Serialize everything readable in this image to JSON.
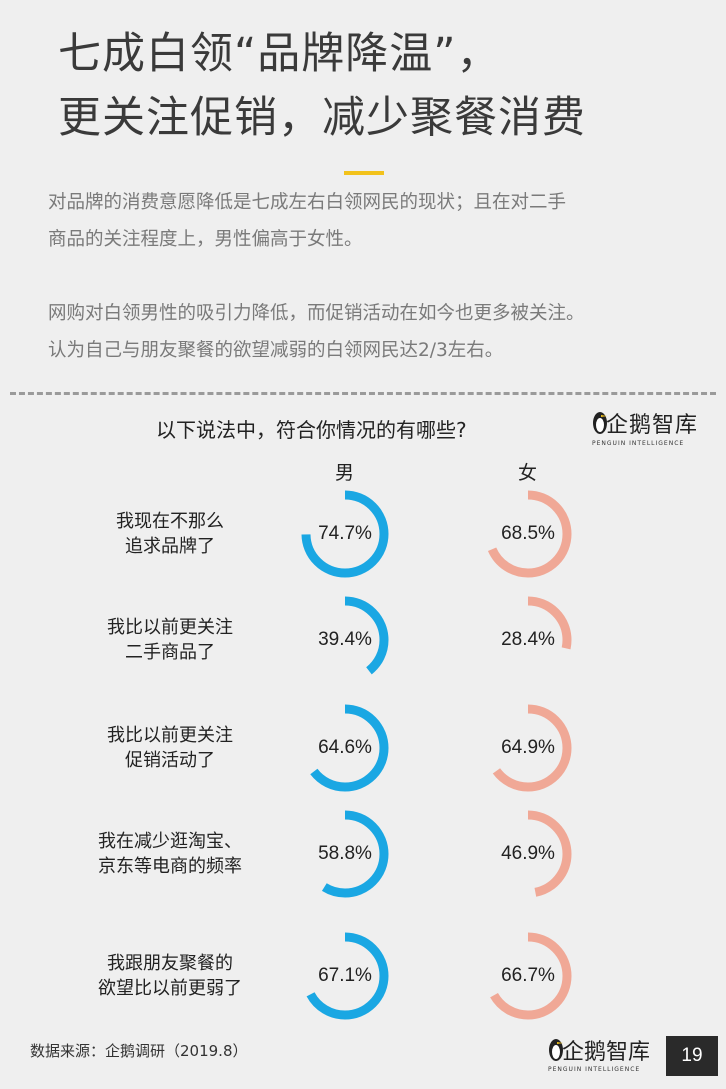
{
  "title": {
    "line1": "七成白领“品牌降温”，",
    "line2": "更关注促销，减少聚餐消费"
  },
  "intro": {
    "p1_line1": "对品牌的消费意愿降低是七成左右白领网民的现状；且在对二手",
    "p1_line2": "商品的关注程度上，男性偏高于女性。",
    "p2_line1": "网购对白领男性的吸引力降低，而促销活动在如今也更多被关注。",
    "p2_line2": "认为自己与朋友聚餐的欲望减弱的白领网民达2/3左右。"
  },
  "logo": {
    "brand": "企鹅智库",
    "sub": "PENGUIN INTELLIGENCE"
  },
  "colors": {
    "male": "#1aa7e3",
    "female": "#f0a896",
    "accent": "#f2c21b"
  },
  "chart_data": {
    "type": "donut",
    "title": "以下说法中，符合你情况的有哪些?",
    "series": [
      {
        "name": "男",
        "values": [
          74.7,
          39.4,
          64.6,
          58.8,
          67.1
        ]
      },
      {
        "name": "女",
        "values": [
          68.5,
          28.4,
          64.9,
          46.9,
          66.7
        ]
      }
    ],
    "categories": [
      [
        "我现在不那么",
        "追求品牌了"
      ],
      [
        "我比以前更关注",
        "二手商品了"
      ],
      [
        "我比以前更关注",
        "促销活动了"
      ],
      [
        "我在减少逛淘宝、",
        "京东等电商的频率"
      ],
      [
        "我跟朋友聚餐的",
        "欲望比以前更弱了"
      ]
    ],
    "value_labels_male": [
      "74.7%",
      "39.4%",
      "64.6%",
      "58.8%",
      "67.1%"
    ],
    "value_labels_female": [
      "68.5%",
      "28.4%",
      "64.9%",
      "46.9%",
      "66.7%"
    ]
  },
  "source": "数据来源：企鹅调研（2019.8）",
  "page_number": "19"
}
